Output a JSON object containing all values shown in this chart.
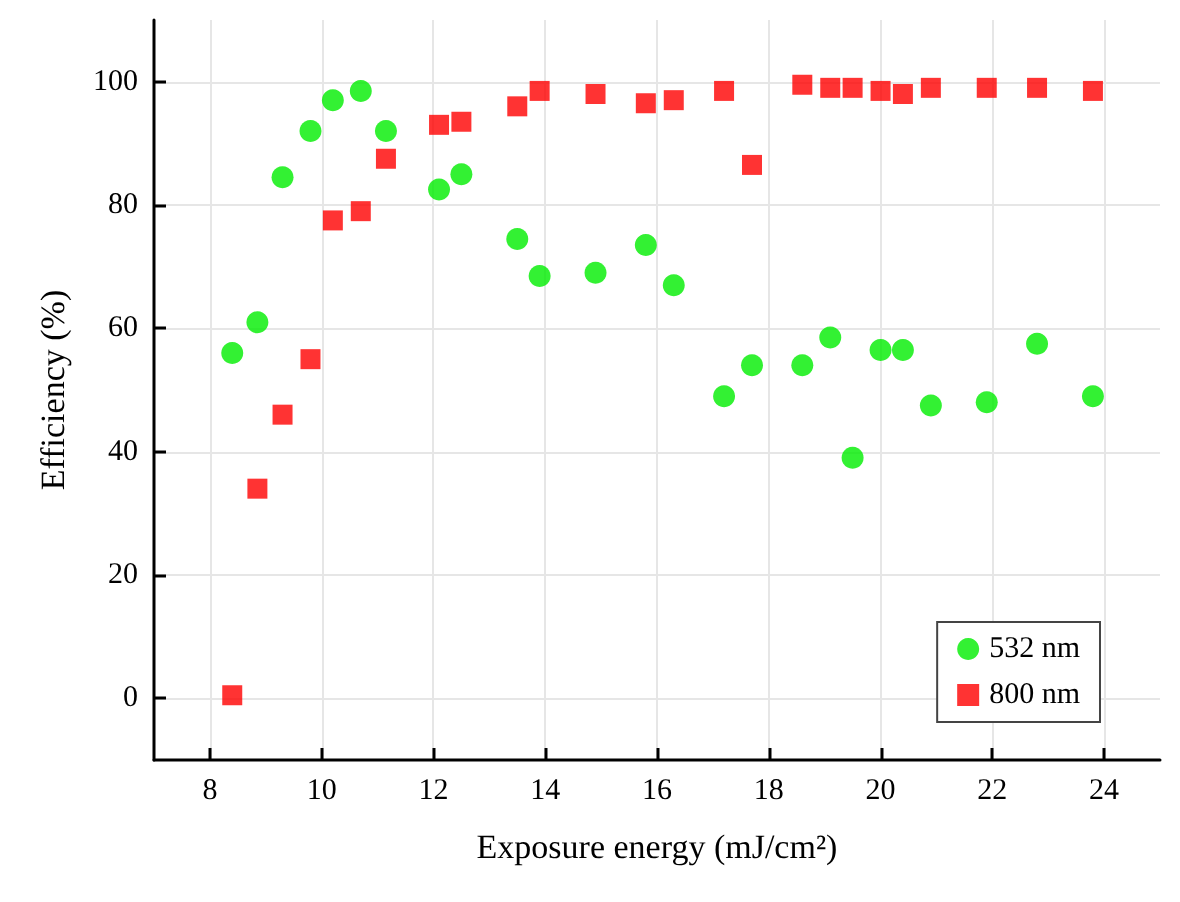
{
  "chart_data": {
    "type": "scatter",
    "xlabel": "Exposure energy (mJ/cm²)",
    "ylabel": "Efficiency (%)",
    "xlim": [
      7,
      25
    ],
    "xticks": [
      8,
      10,
      12,
      14,
      16,
      18,
      20,
      22,
      24
    ],
    "ylim": [
      -10,
      110
    ],
    "yticks": [
      0,
      20,
      40,
      60,
      80,
      100
    ],
    "grid": true,
    "legend": "bottom right",
    "series": [
      {
        "name": "532 nm",
        "color": "#00ee00",
        "marker": "circle",
        "x": [
          8.4,
          8.85,
          9.3,
          9.8,
          10.2,
          10.7,
          11.15,
          12.1,
          12.5,
          13.5,
          13.9,
          14.9,
          15.8,
          16.3,
          17.2,
          17.7,
          18.6,
          19.1,
          19.5,
          20,
          20.4,
          20.9,
          21.9,
          22.8,
          23.8
        ],
        "values": [
          56,
          61,
          84.5,
          92,
          97,
          98.5,
          92,
          82.5,
          85,
          74.5,
          68.5,
          69,
          73.5,
          67,
          49,
          54,
          54,
          58.5,
          39,
          56.5,
          56.5,
          47.5,
          48,
          57.5,
          49
        ]
      },
      {
        "name": "800 nm",
        "color": "#ff0000",
        "marker": "square",
        "x": [
          8.4,
          8.85,
          9.3,
          9.8,
          10.2,
          10.7,
          11.15,
          12.1,
          12.5,
          13.5,
          13.9,
          14.9,
          15.8,
          16.3,
          17.2,
          17.7,
          18.6,
          19.1,
          19.5,
          20,
          20.4,
          20.9,
          21.9,
          22.8,
          23.8
        ],
        "values": [
          0.5,
          34,
          46,
          55,
          77.5,
          79,
          87.5,
          93,
          93.5,
          96,
          98.5,
          98,
          96.5,
          97,
          98.5,
          86.5,
          99.5,
          99,
          99,
          98.5,
          98,
          99,
          99,
          99,
          98.5
        ]
      }
    ]
  }
}
